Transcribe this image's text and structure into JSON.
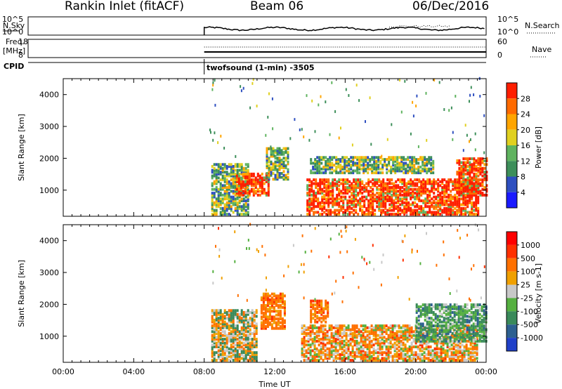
{
  "header": {
    "title": "Rankin Inlet (fitACF)",
    "beam": "Beam 06",
    "date": "06/Dec/2016"
  },
  "top_panels": {
    "nsky_label": "N.Sky",
    "nsky_ticks": [
      "10^5",
      "10^0"
    ],
    "nsearch_label": "N.Search",
    "nsearch_ticks": [
      "10^5",
      "10^0"
    ],
    "freq_label_line1": "Freq.",
    "freq_label_line2": "[MHz]",
    "freq_ticks": [
      "18",
      "8"
    ],
    "nave_label": "Nave",
    "nave_ticks": [
      "60",
      "0"
    ],
    "cpid_label": "CPID",
    "cpid_text": "twofsound (1-min) -3505"
  },
  "chart_data": [
    {
      "type": "heatmap",
      "title": "",
      "xlabel": "",
      "ylabel": "Slant Range [km]",
      "ylim": [
        180,
        4500
      ],
      "yticks": [
        1000,
        2000,
        3000,
        4000
      ],
      "x_range_hours": [
        0,
        24
      ],
      "data_start_hour": 8.0,
      "colorbar": {
        "label": "Power [dB]",
        "ticks": [
          "4",
          "8",
          "12",
          "16",
          "20",
          "24",
          "28"
        ],
        "colors": [
          "#1a1aff",
          "#2e4fc0",
          "#3d8f5a",
          "#5fb35f",
          "#e0d020",
          "#ffa500",
          "#ff6a00",
          "#ff1e00"
        ]
      },
      "echo_regions": [
        {
          "t0": 8.4,
          "t1": 10.5,
          "r0": 200,
          "r1": 1800,
          "level": "medium"
        },
        {
          "t0": 9.8,
          "t1": 11.7,
          "r0": 800,
          "r1": 1500,
          "level": "high"
        },
        {
          "t0": 11.5,
          "t1": 12.7,
          "r0": 1300,
          "r1": 2300,
          "level": "medium"
        },
        {
          "t0": 13.8,
          "t1": 23.5,
          "r0": 200,
          "r1": 1300,
          "level": "high"
        },
        {
          "t0": 14.0,
          "t1": 21.0,
          "r0": 1500,
          "r1": 2000,
          "level": "medium"
        },
        {
          "t0": 22.3,
          "t1": 24.0,
          "r0": 800,
          "r1": 2000,
          "level": "high"
        }
      ]
    },
    {
      "type": "heatmap",
      "title": "",
      "xlabel": "Time UT",
      "ylabel": "Slant Range [km]",
      "ylim": [
        180,
        4500
      ],
      "yticks": [
        1000,
        2000,
        3000,
        4000
      ],
      "x_range_hours": [
        0,
        24
      ],
      "xticks": [
        "00:00",
        "04:00",
        "08:00",
        "12:00",
        "16:00",
        "20:00",
        "00:00"
      ],
      "data_start_hour": 8.0,
      "colorbar": {
        "label": "Velocity [m s-1]",
        "ticks": [
          "1000",
          "500",
          "100",
          "25",
          "-25",
          "-100",
          "-500",
          "-1000"
        ],
        "colors": [
          "#2040c8",
          "#2d6090",
          "#3a8a5a",
          "#55b040",
          "#c8c8c8",
          "#f0a000",
          "#ff7000",
          "#ff3000",
          "#ff0000"
        ]
      },
      "echo_regions": [
        {
          "t0": 8.4,
          "t1": 11.0,
          "r0": 200,
          "r1": 1800,
          "level": "neutral"
        },
        {
          "t0": 11.2,
          "t1": 12.6,
          "r0": 1200,
          "r1": 2300,
          "level": "away"
        },
        {
          "t0": 13.5,
          "t1": 23.5,
          "r0": 200,
          "r1": 1300,
          "level": "mixed"
        },
        {
          "t0": 14.0,
          "t1": 15.0,
          "r0": 1400,
          "r1": 2100,
          "level": "away"
        },
        {
          "t0": 20.0,
          "t1": 24.0,
          "r0": 800,
          "r1": 2000,
          "level": "toward"
        }
      ]
    }
  ]
}
